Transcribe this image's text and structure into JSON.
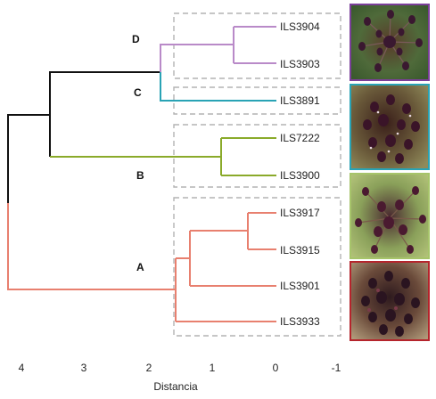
{
  "axis": {
    "title": "Distancia",
    "ticks": [
      "4",
      "3",
      "2",
      "1",
      "0",
      "-1"
    ]
  },
  "groups": {
    "A": "A",
    "B": "B",
    "C": "C",
    "D": "D"
  },
  "leaves": [
    "ILS3904",
    "ILS3903",
    "ILS3891",
    "ILS7222",
    "ILS3900",
    "ILS3917",
    "ILS3915",
    "ILS3901",
    "ILS3933"
  ],
  "colors": {
    "root": "#111111",
    "groupA": "#e8806f",
    "groupB": "#8aaa2a",
    "groupC": "#29a3b5",
    "groupD": "#b98ac8",
    "box": "#b3b3b3",
    "photo_border_D": "#7b3f9a",
    "photo_border_C": "#29a3b5",
    "photo_border_B": "#a6c46a",
    "photo_border_A": "#b5242c"
  },
  "photos": [
    "flower-photo-D",
    "flower-photo-C",
    "flower-photo-B",
    "flower-photo-A"
  ]
}
